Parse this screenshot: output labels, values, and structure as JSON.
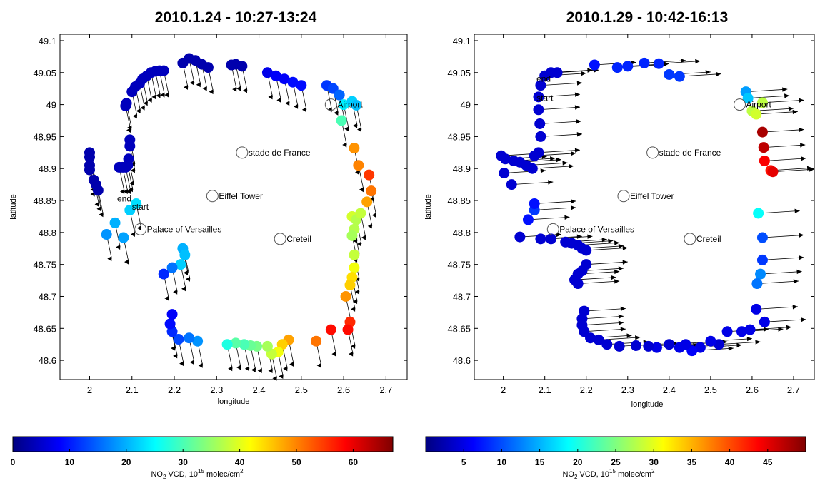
{
  "chart_data": [
    {
      "type": "scatter",
      "title": "2010.1.24  -  10:27-13:24",
      "xlabel": "longitude",
      "ylabel": "latitude",
      "xlim": [
        1.93,
        2.75
      ],
      "ylim": [
        48.57,
        49.11
      ],
      "xticks": [
        2,
        2.1,
        2.2,
        2.3,
        2.4,
        2.5,
        2.6,
        2.7
      ],
      "yticks": [
        48.6,
        48.65,
        48.7,
        48.75,
        48.8,
        48.85,
        48.9,
        48.95,
        49,
        49.05,
        49.1
      ],
      "xtick_labels": [
        "2",
        "2.1",
        "2.2",
        "2.3",
        "2.4",
        "2.5",
        "2.6",
        "2.7"
      ],
      "ytick_labels": [
        "48.6",
        "48.65",
        "48.7",
        "48.75",
        "48.8",
        "48.85",
        "48.9",
        "48.95",
        "49",
        "49.05",
        "49.1"
      ],
      "colorbar": {
        "min": 0,
        "max": 67,
        "ticks": [
          0,
          10,
          20,
          30,
          40,
          50,
          60
        ],
        "tick_labels": [
          "0",
          "10",
          "20",
          "30",
          "40",
          "50",
          "60"
        ],
        "label_main": "NO",
        "label_sub": "2",
        "label_mid": " VCD, 10",
        "label_sup": "15",
        "label_end": " molec/cm",
        "label_sup2": "2"
      },
      "wind_arrow": {
        "dx": 0.012,
        "dy": -0.038,
        "head": "left"
      },
      "landmarks": [
        {
          "name": "Airport",
          "lon": 2.57,
          "lat": 49.0
        },
        {
          "name": "stade de France",
          "lon": 2.36,
          "lat": 48.925
        },
        {
          "name": "Eiffel Tower",
          "lon": 2.29,
          "lat": 48.857
        },
        {
          "name": "Palace of Versailles",
          "lon": 2.12,
          "lat": 48.805
        },
        {
          "name": "Creteil",
          "lon": 2.45,
          "lat": 48.79
        }
      ],
      "markers": [
        {
          "text": "end",
          "lon": 2.065,
          "lat": 48.853
        },
        {
          "text": "start",
          "lon": 2.1,
          "lat": 48.84
        }
      ],
      "points": [
        [
          2.0,
          48.925,
          3
        ],
        [
          2.0,
          48.918,
          3
        ],
        [
          2.0,
          48.905,
          3
        ],
        [
          2.0,
          48.898,
          3
        ],
        [
          2.01,
          48.882,
          3
        ],
        [
          2.015,
          48.875,
          3
        ],
        [
          2.02,
          48.866,
          3
        ],
        [
          2.07,
          48.902,
          4
        ],
        [
          2.078,
          48.902,
          4
        ],
        [
          2.085,
          48.902,
          4
        ],
        [
          2.09,
          48.905,
          4
        ],
        [
          2.092,
          48.915,
          4
        ],
        [
          2.095,
          48.935,
          4
        ],
        [
          2.095,
          48.945,
          4
        ],
        [
          2.085,
          48.998,
          4
        ],
        [
          2.087,
          49.002,
          4
        ],
        [
          2.1,
          49.02,
          4
        ],
        [
          2.108,
          49.028,
          4
        ],
        [
          2.118,
          49.033,
          4
        ],
        [
          2.125,
          49.04,
          4
        ],
        [
          2.135,
          49.045,
          4
        ],
        [
          2.145,
          49.05,
          4
        ],
        [
          2.155,
          49.052,
          4
        ],
        [
          2.165,
          49.053,
          4
        ],
        [
          2.175,
          49.053,
          4
        ],
        [
          2.22,
          49.065,
          3
        ],
        [
          2.235,
          49.072,
          3
        ],
        [
          2.25,
          49.069,
          3
        ],
        [
          2.265,
          49.063,
          3
        ],
        [
          2.28,
          49.058,
          3
        ],
        [
          2.335,
          49.062,
          3
        ],
        [
          2.345,
          49.063,
          3
        ],
        [
          2.36,
          49.06,
          3
        ],
        [
          2.42,
          49.05,
          7
        ],
        [
          2.44,
          49.045,
          8
        ],
        [
          2.46,
          49.04,
          8
        ],
        [
          2.48,
          49.035,
          9
        ],
        [
          2.5,
          49.03,
          9
        ],
        [
          2.56,
          49.03,
          12
        ],
        [
          2.575,
          49.025,
          13
        ],
        [
          2.59,
          49.015,
          15
        ],
        [
          2.6,
          49.0,
          24
        ],
        [
          2.62,
          49.005,
          22
        ],
        [
          2.63,
          48.999,
          21
        ],
        [
          2.595,
          48.975,
          30
        ],
        [
          2.625,
          48.932,
          49
        ],
        [
          2.635,
          48.905,
          50
        ],
        [
          2.66,
          48.89,
          55
        ],
        [
          2.665,
          48.865,
          51
        ],
        [
          2.655,
          48.848,
          48
        ],
        [
          2.62,
          48.825,
          39
        ],
        [
          2.63,
          48.82,
          37
        ],
        [
          2.64,
          48.83,
          38
        ],
        [
          2.625,
          48.805,
          37
        ],
        [
          2.62,
          48.795,
          36
        ],
        [
          2.625,
          48.765,
          38
        ],
        [
          2.625,
          48.745,
          41
        ],
        [
          2.62,
          48.73,
          44
        ],
        [
          2.615,
          48.718,
          45
        ],
        [
          2.605,
          48.7,
          49
        ],
        [
          2.615,
          48.66,
          56
        ],
        [
          2.61,
          48.648,
          58
        ],
        [
          2.57,
          48.648,
          58
        ],
        [
          2.535,
          48.63,
          51
        ],
        [
          2.47,
          48.632,
          48
        ],
        [
          2.455,
          48.625,
          45
        ],
        [
          2.445,
          48.613,
          41
        ],
        [
          2.43,
          48.61,
          38
        ],
        [
          2.42,
          48.622,
          36
        ],
        [
          2.395,
          48.622,
          33
        ],
        [
          2.38,
          48.623,
          32
        ],
        [
          2.365,
          48.625,
          30
        ],
        [
          2.345,
          48.627,
          31
        ],
        [
          2.325,
          48.625,
          27
        ],
        [
          2.255,
          48.63,
          18
        ],
        [
          2.235,
          48.635,
          16
        ],
        [
          2.21,
          48.633,
          13
        ],
        [
          2.195,
          48.645,
          11
        ],
        [
          2.19,
          48.657,
          9
        ],
        [
          2.195,
          48.672,
          8
        ],
        [
          2.22,
          48.775,
          20
        ],
        [
          2.225,
          48.765,
          21
        ],
        [
          2.215,
          48.75,
          22
        ],
        [
          2.195,
          48.745,
          16
        ],
        [
          2.175,
          48.735,
          11
        ],
        [
          2.04,
          48.797,
          18
        ],
        [
          2.06,
          48.815,
          20
        ],
        [
          2.08,
          48.792,
          19
        ],
        [
          2.095,
          48.835,
          22
        ],
        [
          2.11,
          48.845,
          23
        ]
      ]
    },
    {
      "type": "scatter",
      "title": "2010.1.29  -  10:42-16:13",
      "xlabel": "longitude",
      "ylabel": "latitude",
      "xlim": [
        1.93,
        2.75
      ],
      "ylim": [
        48.57,
        49.11
      ],
      "xticks": [
        2,
        2.1,
        2.2,
        2.3,
        2.4,
        2.5,
        2.6,
        2.7
      ],
      "yticks": [
        48.6,
        48.65,
        48.7,
        48.75,
        48.8,
        48.85,
        48.9,
        48.95,
        49,
        49.05,
        49.1
      ],
      "xtick_labels": [
        "2",
        "2.1",
        "2.2",
        "2.3",
        "2.4",
        "2.5",
        "2.6",
        "2.7"
      ],
      "ytick_labels": [
        "48.6",
        "48.65",
        "48.7",
        "48.75",
        "48.8",
        "48.85",
        "48.9",
        "48.95",
        "49",
        "49.05",
        "49.1"
      ],
      "colorbar": {
        "min": 0,
        "max": 50,
        "ticks": [
          5,
          10,
          15,
          20,
          25,
          30,
          35,
          40,
          45
        ],
        "tick_labels": [
          "5",
          "10",
          "15",
          "20",
          "25",
          "30",
          "35",
          "40",
          "45"
        ],
        "label_main": "NO",
        "label_sub": "2",
        "label_mid": " VCD, 10",
        "label_sup": "15",
        "label_end": " molec/cm",
        "label_sup2": "2"
      },
      "wind_arrow": {
        "dx": 0.1,
        "dy": 0.004,
        "head": "right"
      },
      "landmarks": [
        {
          "name": "Airport",
          "lon": 2.57,
          "lat": 49.0
        },
        {
          "name": "stade de France",
          "lon": 2.36,
          "lat": 48.925
        },
        {
          "name": "Eiffel Tower",
          "lon": 2.29,
          "lat": 48.857
        },
        {
          "name": "Palace of Versailles",
          "lon": 2.12,
          "lat": 48.805
        },
        {
          "name": "Creteil",
          "lon": 2.45,
          "lat": 48.79
        }
      ],
      "markers": [
        {
          "text": "end",
          "lon": 2.08,
          "lat": 49.04
        },
        {
          "text": "start",
          "lon": 2.08,
          "lat": 49.01
        }
      ],
      "points": [
        [
          2.22,
          49.062,
          7
        ],
        [
          2.275,
          49.058,
          8
        ],
        [
          2.3,
          49.06,
          8
        ],
        [
          2.34,
          49.065,
          8
        ],
        [
          2.375,
          49.064,
          8
        ],
        [
          2.4,
          49.047,
          9
        ],
        [
          2.425,
          49.044,
          9
        ],
        [
          2.585,
          49.02,
          14
        ],
        [
          2.59,
          49.01,
          16
        ],
        [
          2.6,
          48.99,
          28
        ],
        [
          2.625,
          49.003,
          28
        ],
        [
          2.61,
          48.985,
          29
        ],
        [
          2.625,
          48.957,
          48
        ],
        [
          2.628,
          48.933,
          47
        ],
        [
          2.63,
          48.912,
          44
        ],
        [
          2.645,
          48.897,
          43
        ],
        [
          2.65,
          48.895,
          45
        ],
        [
          2.615,
          48.83,
          19
        ],
        [
          2.625,
          48.792,
          10
        ],
        [
          2.625,
          48.757,
          9
        ],
        [
          2.62,
          48.735,
          13
        ],
        [
          2.612,
          48.72,
          12
        ],
        [
          2.61,
          48.68,
          5
        ],
        [
          2.63,
          48.66,
          5
        ],
        [
          2.595,
          48.648,
          5
        ],
        [
          2.575,
          48.645,
          5
        ],
        [
          2.54,
          48.645,
          5
        ],
        [
          2.52,
          48.625,
          4
        ],
        [
          2.5,
          48.63,
          5
        ],
        [
          2.475,
          48.62,
          5
        ],
        [
          2.455,
          48.615,
          6
        ],
        [
          2.44,
          48.625,
          5
        ],
        [
          2.425,
          48.62,
          5
        ],
        [
          2.4,
          48.625,
          4
        ],
        [
          2.37,
          48.62,
          5
        ],
        [
          2.35,
          48.622,
          4
        ],
        [
          2.32,
          48.623,
          4
        ],
        [
          2.28,
          48.622,
          4
        ],
        [
          2.25,
          48.625,
          4
        ],
        [
          2.23,
          48.632,
          4
        ],
        [
          2.21,
          48.635,
          4
        ],
        [
          2.195,
          48.645,
          4
        ],
        [
          2.19,
          48.655,
          4
        ],
        [
          2.19,
          48.665,
          4
        ],
        [
          2.195,
          48.677,
          4
        ],
        [
          2.2,
          48.75,
          4
        ],
        [
          2.19,
          48.74,
          4
        ],
        [
          2.18,
          48.735,
          4
        ],
        [
          2.172,
          48.726,
          4
        ],
        [
          2.18,
          48.72,
          4
        ],
        [
          2.15,
          48.785,
          4
        ],
        [
          2.165,
          48.783,
          4
        ],
        [
          2.18,
          48.78,
          4
        ],
        [
          2.19,
          48.775,
          4
        ],
        [
          2.2,
          48.772,
          4
        ],
        [
          2.115,
          48.79,
          4
        ],
        [
          2.09,
          48.79,
          4
        ],
        [
          2.04,
          48.793,
          4
        ],
        [
          2.06,
          48.82,
          7
        ],
        [
          2.075,
          48.835,
          9
        ],
        [
          2.075,
          48.845,
          7
        ],
        [
          1.995,
          48.92,
          4
        ],
        [
          2.005,
          48.915,
          4
        ],
        [
          2.025,
          48.912,
          4
        ],
        [
          2.04,
          48.91,
          4
        ],
        [
          2.055,
          48.905,
          4
        ],
        [
          2.07,
          48.9,
          4
        ],
        [
          2.075,
          48.92,
          4
        ],
        [
          2.002,
          48.893,
          4
        ],
        [
          2.02,
          48.875,
          4
        ],
        [
          2.085,
          48.925,
          4
        ],
        [
          2.09,
          48.95,
          4
        ],
        [
          2.088,
          48.97,
          4
        ],
        [
          2.085,
          48.992,
          4
        ],
        [
          2.085,
          49.012,
          4
        ],
        [
          2.09,
          49.03,
          4
        ],
        [
          2.1,
          49.045,
          4
        ],
        [
          2.115,
          49.05,
          4
        ],
        [
          2.13,
          49.05,
          4
        ]
      ]
    }
  ]
}
